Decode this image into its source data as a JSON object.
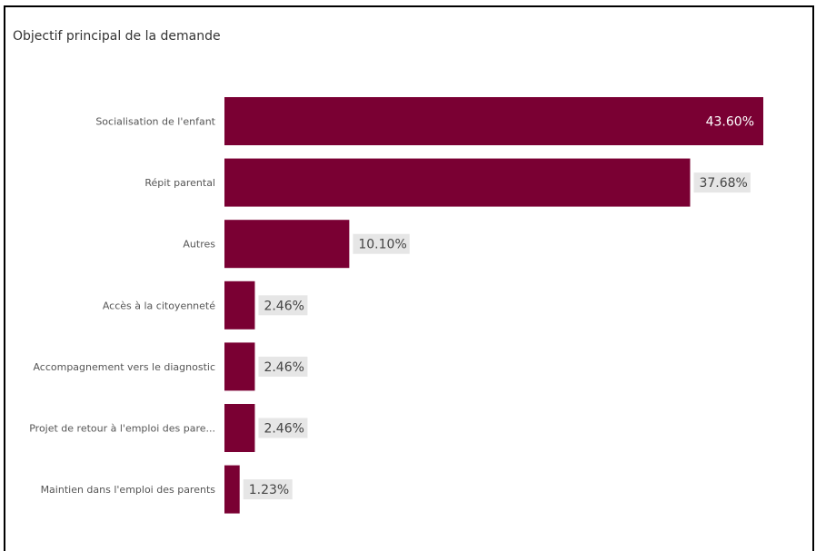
{
  "visual": {
    "title": "Objectif principal de la demande"
  },
  "colors": {
    "bar": "#7a0033",
    "label_bg": "#e6e6e6",
    "label_text_outside": "#444444",
    "label_text_inside": "#ffffff"
  },
  "chart_data": {
    "type": "bar",
    "orientation": "horizontal",
    "title": "Objectif principal de la demande",
    "categories": [
      "Socialisation de l'enfant",
      "Répit parental",
      "Autres",
      "Accès à la citoyenneté",
      "Accompagnement vers le diagnostic",
      "Projet de retour à l'emploi des pare...",
      "Maintien dans l'emploi des parents"
    ],
    "values": [
      43.6,
      37.68,
      10.1,
      2.46,
      2.46,
      2.46,
      1.23
    ],
    "value_labels": [
      "43.60%",
      "37.68%",
      "10.10%",
      "2.46%",
      "2.46%",
      "2.46%",
      "1.23%"
    ],
    "xlim": [
      0,
      43.6
    ],
    "unit": "%",
    "grid": false,
    "legend": "none"
  }
}
